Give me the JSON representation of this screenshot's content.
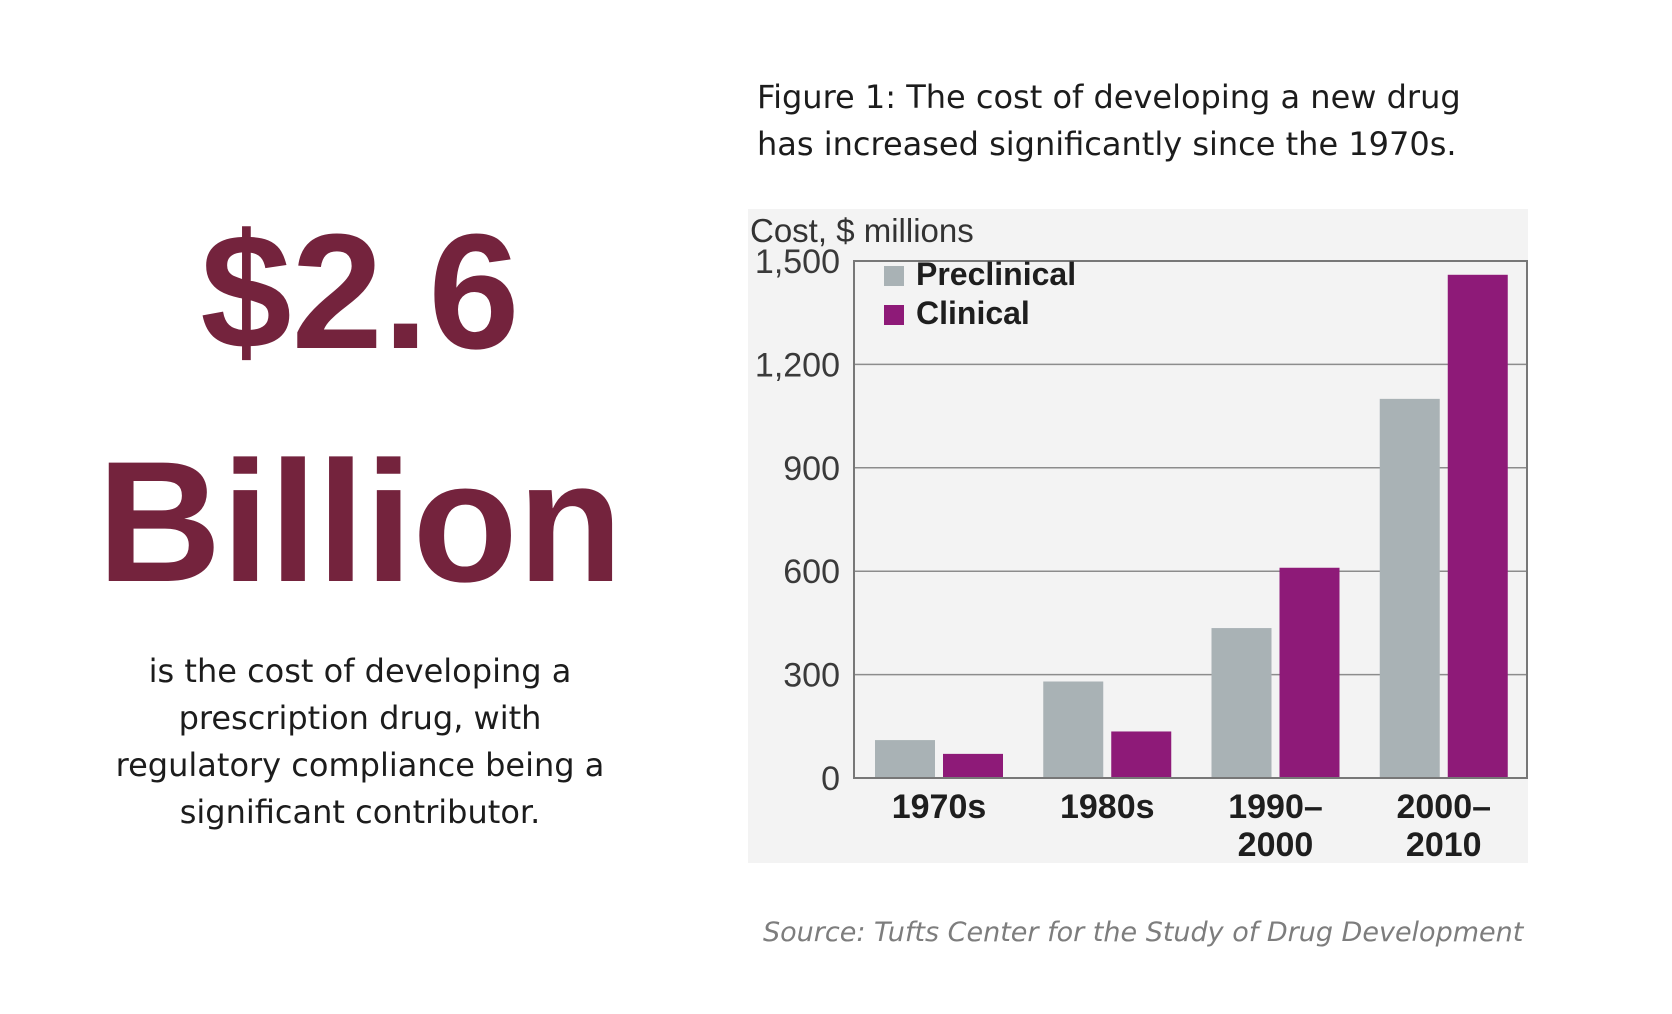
{
  "headline": {
    "amount": "$2.6",
    "unit": "Billion",
    "description": "is the cost of developing a prescription drug, with regulatory compliance being a significant contributor."
  },
  "figure": {
    "caption": "Figure 1: The cost of developing a new drug has increased significantly since the 1970s.",
    "source": "Source: Tufts Center for the Study of Drug Development"
  },
  "colors": {
    "headline": "#74233d",
    "preclinical": "#a9b2b5",
    "clinical": "#8e1a78"
  },
  "chart_data": {
    "type": "bar",
    "title": "",
    "ylabel": "Cost, $ millions",
    "xlabel": "",
    "categories": [
      [
        "1970s"
      ],
      [
        "1980s"
      ],
      [
        "1990–",
        "2000"
      ],
      [
        "2000–",
        "2010"
      ]
    ],
    "series": [
      {
        "name": "Preclinical",
        "color": "#a9b2b5",
        "values": [
          110,
          280,
          435,
          1100
        ]
      },
      {
        "name": "Clinical",
        "color": "#8e1a78",
        "values": [
          70,
          135,
          610,
          1460
        ]
      }
    ],
    "ylim": [
      0,
      1500
    ],
    "yticks": [
      0,
      300,
      600,
      900,
      1200,
      1500
    ],
    "ytick_labels": [
      "0",
      "300",
      "600",
      "900",
      "1,200",
      "1,500"
    ],
    "grid": true,
    "legend": "top-left"
  }
}
